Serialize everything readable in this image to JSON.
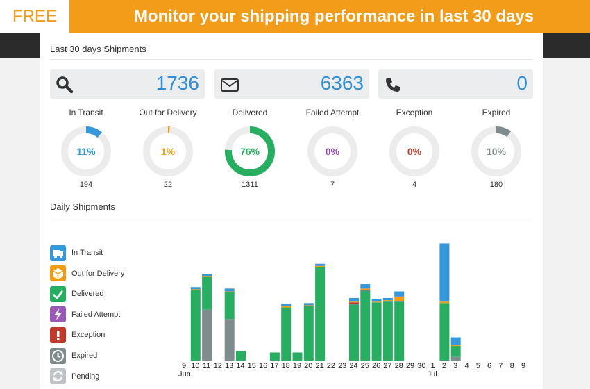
{
  "banner": {
    "badge": "FREE",
    "title": "Monitor your shipping performance in last 30 days"
  },
  "sections": {
    "shipments_title": "Last 30 days Shipments",
    "daily_title": "Daily Shipments"
  },
  "stats": [
    {
      "icon": "search-icon",
      "value": "1736"
    },
    {
      "icon": "envelope-icon",
      "value": "6363"
    },
    {
      "icon": "phone-icon",
      "value": "0"
    }
  ],
  "donuts": [
    {
      "label": "In Transit",
      "percent": "11%",
      "fraction": 0.11,
      "count": "194",
      "color": "#3498db"
    },
    {
      "label": "Out for Delivery",
      "percent": "1%",
      "fraction": 0.012,
      "count": "22",
      "color": "#f39c12"
    },
    {
      "label": "Delivered",
      "percent": "76%",
      "fraction": 0.76,
      "count": "1311",
      "color": "#27ae60"
    },
    {
      "label": "Failed Attempt",
      "percent": "0%",
      "fraction": 0.0,
      "count": "7",
      "color": "#8e44ad"
    },
    {
      "label": "Exception",
      "percent": "0%",
      "fraction": 0.0,
      "count": "4",
      "color": "#c0392b"
    },
    {
      "label": "Expired",
      "percent": "10%",
      "fraction": 0.1,
      "count": "180",
      "color": "#7f8c8d"
    }
  ],
  "legend": [
    {
      "label": "In Transit",
      "icon": "truck-icon",
      "color": "#3498db"
    },
    {
      "label": "Out for Delivery",
      "icon": "box-icon",
      "color": "#f39c12"
    },
    {
      "label": "Delivered",
      "icon": "check-icon",
      "color": "#27ae60"
    },
    {
      "label": "Failed Attempt",
      "icon": "bolt-icon",
      "color": "#9b59b6"
    },
    {
      "label": "Exception",
      "icon": "exclamation-icon",
      "color": "#c0392b"
    },
    {
      "label": "Expired",
      "icon": "clock-icon",
      "color": "#7f8c8d"
    },
    {
      "label": "Pending",
      "icon": "refresh-icon",
      "color": "#bdc3c7"
    }
  ],
  "chart_data": {
    "type": "bar",
    "stacked": true,
    "x_ticks": [
      "9",
      "10",
      "11",
      "12",
      "13",
      "14",
      "15",
      "16",
      "17",
      "18",
      "19",
      "20",
      "21",
      "22",
      "23",
      "24",
      "25",
      "26",
      "27",
      "28",
      "29",
      "30",
      "1",
      "2",
      "3",
      "4",
      "5",
      "6",
      "7",
      "8",
      "9"
    ],
    "months": [
      {
        "label": "Jun",
        "at_tick": "9"
      },
      {
        "label": "Jul",
        "at_tick": "1"
      }
    ],
    "series": [
      {
        "name": "Expired",
        "color": "#7f8c8d",
        "values": [
          0,
          0,
          70,
          0,
          57,
          0,
          0,
          0,
          0,
          0,
          0,
          0,
          0,
          0,
          0,
          0,
          0,
          0,
          0,
          0,
          0,
          0,
          0,
          0,
          5,
          0,
          0,
          0,
          0,
          0,
          0
        ]
      },
      {
        "name": "Delivered",
        "color": "#27ae60",
        "values": [
          0,
          97,
          45,
          0,
          37,
          13,
          0,
          0,
          11,
          73,
          11,
          75,
          128,
          0,
          0,
          77,
          96,
          80,
          81,
          81,
          0,
          0,
          0,
          79,
          15,
          0,
          0,
          0,
          0,
          0,
          0
        ]
      },
      {
        "name": "Failed Attempt",
        "color": "#9b59b6",
        "values": [
          0,
          0,
          0,
          0,
          0,
          0,
          0,
          0,
          0,
          0,
          0,
          0,
          0,
          0,
          0,
          1,
          1,
          0,
          1,
          1,
          0,
          0,
          0,
          0,
          0,
          0,
          0,
          0,
          0,
          0,
          0
        ]
      },
      {
        "name": "Exception",
        "color": "#c0392b",
        "values": [
          0,
          0,
          0,
          0,
          0,
          0,
          0,
          0,
          0,
          0,
          0,
          0,
          0,
          0,
          0,
          2,
          0,
          0,
          0,
          0,
          0,
          0,
          0,
          0,
          0,
          0,
          0,
          0,
          0,
          0,
          0
        ]
      },
      {
        "name": "Out for Delivery",
        "color": "#f39c12",
        "values": [
          0,
          1,
          1,
          0,
          1,
          0,
          0,
          0,
          0,
          2,
          0,
          1,
          2,
          0,
          0,
          1,
          2,
          1,
          1,
          6,
          0,
          0,
          0,
          2,
          1,
          0,
          0,
          0,
          0,
          0,
          0
        ]
      },
      {
        "name": "In Transit",
        "color": "#3498db",
        "values": [
          0,
          3,
          3,
          0,
          4,
          0,
          0,
          0,
          0,
          3,
          0,
          3,
          3,
          0,
          0,
          5,
          6,
          4,
          3,
          7,
          0,
          0,
          0,
          80,
          11,
          0,
          0,
          0,
          0,
          0,
          0
        ]
      }
    ],
    "ylim": [
      0,
      170
    ],
    "grid": false,
    "legend_position": "left"
  }
}
